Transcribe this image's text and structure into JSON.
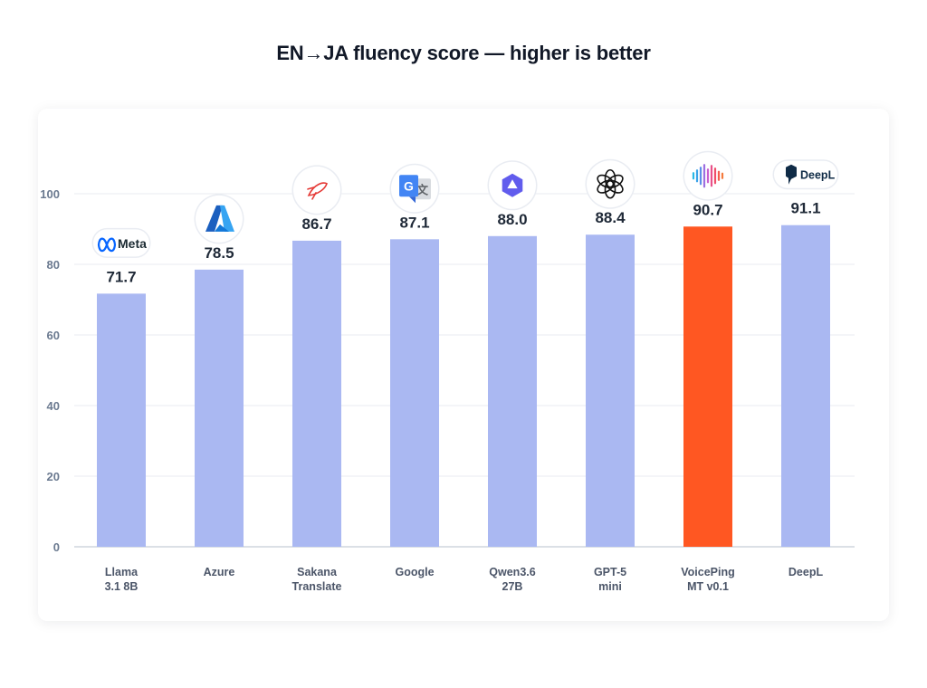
{
  "chart_data": {
    "type": "bar",
    "title": "EN→JA fluency score — higher is better",
    "categories": [
      [
        "Llama",
        "3.1 8B"
      ],
      [
        "Azure"
      ],
      [
        "Sakana",
        "Translate"
      ],
      [
        "Google"
      ],
      [
        "Qwen3.6",
        "27B"
      ],
      [
        "GPT-5",
        "mini"
      ],
      [
        "VoicePing",
        "MT v0.1"
      ],
      [
        "DeepL"
      ]
    ],
    "values": [
      71.7,
      78.5,
      86.7,
      87.1,
      88.0,
      88.4,
      90.7,
      91.1
    ],
    "value_labels": [
      "71.7",
      "78.5",
      "86.7",
      "87.1",
      "88.0",
      "88.4",
      "90.7",
      "91.1"
    ],
    "logos": [
      "meta-logo",
      "azure-logo",
      "sakana-logo",
      "google-translate-logo",
      "qwen-logo",
      "openai-logo",
      "voiceping-logo",
      "deepl-logo"
    ],
    "logo_text": [
      "Meta",
      "",
      "",
      "",
      "",
      "",
      "",
      "DeepL"
    ],
    "y_ticks": [
      0,
      20,
      40,
      60,
      80,
      100
    ],
    "ylim": [
      0,
      100
    ],
    "xlabel": "",
    "ylabel": "",
    "grid": true,
    "highlight_index": 6,
    "colors": {
      "bar": "#aab8f2",
      "highlight": "#ff5722",
      "grid": "#e8ebf0",
      "axis": "#cfd5de"
    }
  }
}
